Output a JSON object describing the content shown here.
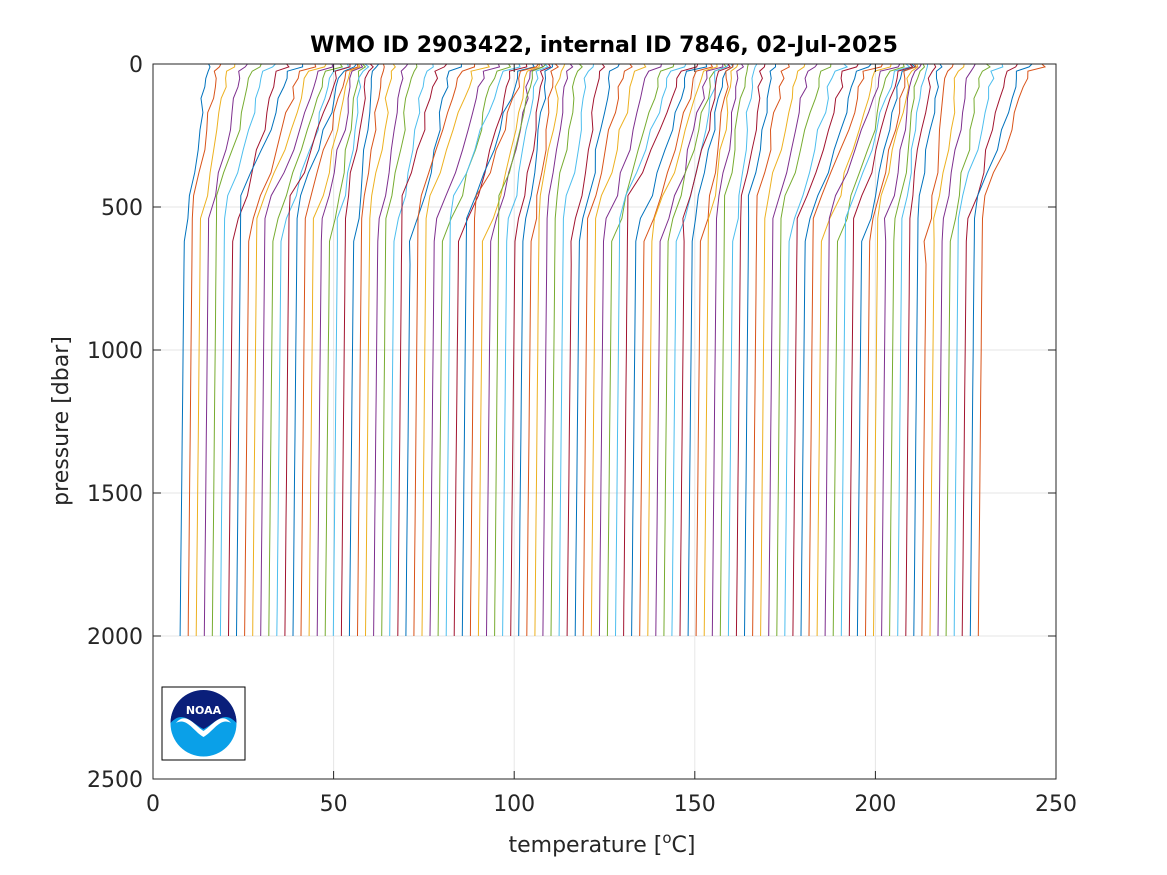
{
  "chart_data": {
    "type": "line",
    "title": "WMO ID 2903422, internal ID 7846, 02-Jul-2025",
    "xlabel": "temperature [",
    "xlabel_sup": "o",
    "xlabel_end": "C]",
    "ylabel": "pressure [dbar]",
    "xlim": [
      0,
      250
    ],
    "ylim": [
      0,
      2500
    ],
    "y_reversed": true,
    "grid": true,
    "xticks": [
      "0",
      "50",
      "100",
      "150",
      "200",
      "250"
    ],
    "yticks": [
      "0",
      "500",
      "1000",
      "1500",
      "2000",
      "2500"
    ],
    "profiles": {
      "count": 100,
      "description": "waterfall of temperature profiles, each offset in x",
      "max_pressure": 2000,
      "x_start_deep": 7.5,
      "x_end_deep": 228.5,
      "surface_offset_mean": 14,
      "colors": [
        "#0072BD",
        "#D95319",
        "#EDB120",
        "#7E2F8E",
        "#77AC30",
        "#4DBEEE",
        "#A2142F"
      ]
    },
    "logo": {
      "text": "NOAA",
      "colors": {
        "navy": "#0a1f7a",
        "sky": "#0aa0e8"
      }
    }
  }
}
